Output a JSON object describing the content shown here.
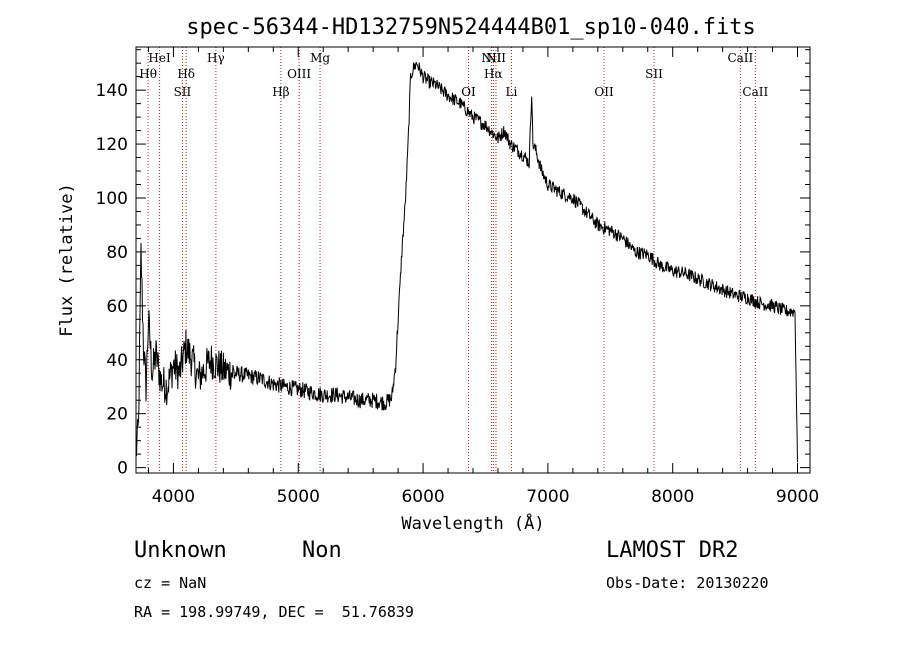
{
  "chart_data": {
    "type": "line",
    "title": "spec-56344-HD132759N524444B01_sp10-040.fits",
    "xlabel": "Wavelength (Å)",
    "ylabel": "Flux (relative)",
    "xlim": [
      3700,
      9100
    ],
    "ylim": [
      -2,
      156
    ],
    "xticks": [
      4000,
      5000,
      6000,
      7000,
      8000,
      9000
    ],
    "yticks": [
      0,
      20,
      40,
      60,
      80,
      100,
      120,
      140
    ],
    "line_color": "#000000",
    "marker_color": "#b22222",
    "series": [
      {
        "x": [
          3700,
          3720,
          3740,
          3760,
          3780,
          3800,
          3830,
          3860,
          3900,
          3950,
          4000,
          4050,
          4100,
          4150,
          4200,
          4300,
          4400,
          4500,
          4600,
          4700,
          4800,
          4900,
          5000,
          5100,
          5200,
          5300,
          5400,
          5500,
          5600,
          5700,
          5750,
          5780,
          5800,
          5830,
          5860,
          5880,
          5900,
          5920,
          5950,
          6000,
          6050,
          6100,
          6200,
          6300,
          6400,
          6500,
          6560,
          6600,
          6650,
          6700,
          6750,
          6800,
          6850,
          6870,
          6880,
          6900,
          6950,
          7000,
          7100,
          7200,
          7300,
          7400,
          7500,
          7600,
          7700,
          7800,
          7900,
          8000,
          8100,
          8200,
          8300,
          8400,
          8500,
          8600,
          8700,
          8800,
          8900,
          8980,
          9000
        ],
        "y": [
          5,
          15,
          80,
          45,
          30,
          55,
          35,
          42,
          32,
          30,
          38,
          35,
          45,
          40,
          33,
          40,
          36,
          35,
          34,
          33,
          31,
          30,
          29,
          28,
          27,
          27,
          26,
          25,
          25,
          24,
          26,
          38,
          55,
          80,
          100,
          120,
          145,
          148,
          150,
          145,
          143,
          142,
          138,
          135,
          130,
          127,
          124,
          122,
          125,
          120,
          118,
          116,
          113,
          140,
          120,
          118,
          110,
          105,
          102,
          100,
          95,
          90,
          88,
          85,
          80,
          79,
          75,
          73,
          72,
          70,
          68,
          66,
          64,
          63,
          61,
          60,
          58,
          58,
          2
        ]
      }
    ],
    "line_markers": [
      {
        "label": "Hθ",
        "x": 3797,
        "row": 2
      },
      {
        "label": "HeI",
        "x": 3889,
        "row": 1
      },
      {
        "label": "SII",
        "x": 4072,
        "row": 3
      },
      {
        "label": "Hδ",
        "x": 4102,
        "row": 2
      },
      {
        "label": "Hγ",
        "x": 4340,
        "row": 1
      },
      {
        "label": "Hβ",
        "x": 4861,
        "row": 3
      },
      {
        "label": "OIII",
        "x": 5007,
        "row": 2
      },
      {
        "label": "Mg",
        "x": 5175,
        "row": 1
      },
      {
        "label": "OI",
        "x": 6364,
        "row": 3
      },
      {
        "label": "NII",
        "x": 6548,
        "row": 1
      },
      {
        "label": "Hα",
        "x": 6563,
        "row": 2
      },
      {
        "label": "NII",
        "x": 6584,
        "row": 1
      },
      {
        "label": "Li",
        "x": 6708,
        "row": 3
      },
      {
        "label": "OII",
        "x": 7450,
        "row": 3
      },
      {
        "label": "SII",
        "x": 7850,
        "row": 2
      },
      {
        "label": "CaII",
        "x": 8542,
        "row": 1
      },
      {
        "label": "CaII",
        "x": 8662,
        "row": 3
      }
    ]
  },
  "info": {
    "object_class": "Unknown",
    "object_subclass": "Non",
    "cz": "cz = NaN",
    "coords": "RA = 198.99749, DEC =  51.76839",
    "survey": "LAMOST DR2",
    "obs_date": "Obs-Date: 20130220"
  }
}
